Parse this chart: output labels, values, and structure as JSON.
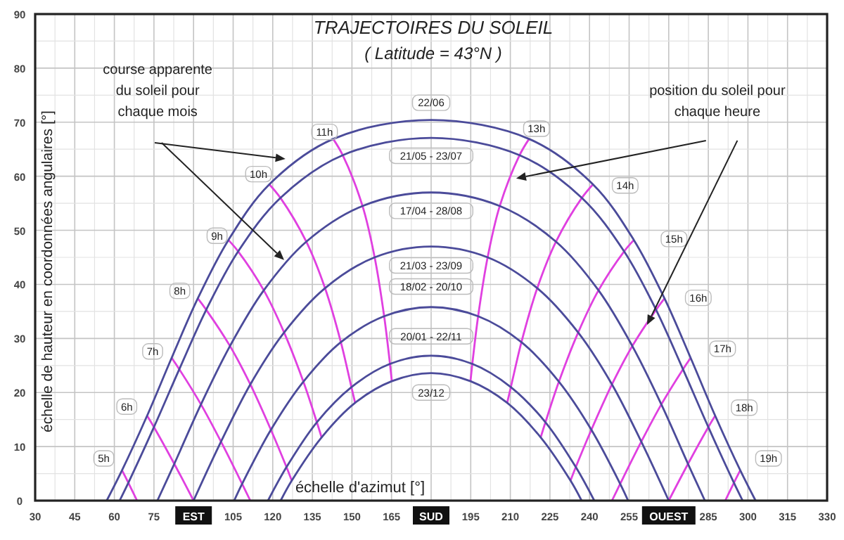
{
  "chart_data": {
    "type": "line",
    "title": "TRAJECTOIRES DU SOLEIL",
    "subtitle": "( Latitude = 43°N )",
    "xlabel": "échelle d'azimut [°]",
    "ylabel": "échelle de hauteur en coordonnées angulaires [°]",
    "xlim": [
      30,
      330
    ],
    "xticks": [
      30,
      45,
      60,
      75,
      {
        "value": 90,
        "label": "EST"
      },
      105,
      120,
      135,
      150,
      165,
      {
        "value": 180,
        "label": "SUD"
      },
      195,
      210,
      225,
      240,
      255,
      {
        "value": 270,
        "label": "OUEST"
      },
      285,
      300,
      315,
      330
    ],
    "ylim": [
      0,
      90
    ],
    "yticks": [
      0,
      10,
      20,
      30,
      40,
      50,
      60,
      70,
      80,
      90
    ],
    "grid": true,
    "series": [
      {
        "color": "#e040e0",
        "x": [
          62.9,
          65.3,
          68.6
        ],
        "values": [
          5.6,
          3.3,
          0
        ]
      },
      {
        "color": "#e040e0",
        "x": [
          72.4,
          75.0,
          82.7,
          90
        ],
        "values": [
          15.7,
          13.6,
          6.8,
          0
        ]
      },
      {
        "color": "#e040e0",
        "x": [
          81.7,
          84.6,
          92.8,
          100.4,
          108.4,
          111.5
        ],
        "values": [
          26.4,
          24.3,
          17.8,
          10.9,
          3.1,
          0
        ]
      },
      {
        "color": "#e040e0",
        "x": [
          91.6,
          94.8,
          103.8,
          111.5,
          119.3,
          125.2,
          127.2
        ],
        "values": [
          37.4,
          35.3,
          28.6,
          21.5,
          13.1,
          6.2,
          3.7
        ]
      },
      {
        "color": "#e040e0",
        "x": [
          103.2,
          106.9,
          116.6,
          124.3,
          131.6,
          136.7,
          138.5
        ],
        "values": [
          48.2,
          46.1,
          38.9,
          31.1,
          22.0,
          14.5,
          11.7
        ]
      },
      {
        "color": "#e040e0",
        "x": [
          118.7,
          122.9,
          132.7,
          139.8,
          145.8,
          149.8,
          151.2
        ],
        "values": [
          58.5,
          56.0,
          47.9,
          39.3,
          29.3,
          21.0,
          18.1
        ]
      },
      {
        "color": "#e040e0",
        "x": [
          142.9,
          146.5,
          154.0,
          158.6,
          162.2,
          164.4,
          165.1
        ],
        "values": [
          66.9,
          63.9,
          54.5,
          45.0,
          34.1,
          25.3,
          22.1
        ]
      },
      {
        "color": "#e040e0",
        "x": [
          217.1,
          213.5,
          206.0,
          201.4,
          197.8,
          195.6,
          194.9
        ],
        "values": [
          66.9,
          63.9,
          54.5,
          45.0,
          34.1,
          25.3,
          22.1
        ]
      },
      {
        "color": "#e040e0",
        "x": [
          241.3,
          237.1,
          227.3,
          220.2,
          214.2,
          210.2,
          208.8
        ],
        "values": [
          58.5,
          56.0,
          47.9,
          39.3,
          29.3,
          21.0,
          18.1
        ]
      },
      {
        "color": "#e040e0",
        "x": [
          256.8,
          253.1,
          243.4,
          235.7,
          228.4,
          223.3,
          221.5
        ],
        "values": [
          48.2,
          46.1,
          38.9,
          31.1,
          22.0,
          14.5,
          11.7
        ]
      },
      {
        "color": "#e040e0",
        "x": [
          268.4,
          265.2,
          256.2,
          248.5,
          240.7,
          234.8,
          232.8
        ],
        "values": [
          37.4,
          35.3,
          28.6,
          21.5,
          13.1,
          6.2,
          3.7
        ]
      },
      {
        "color": "#e040e0",
        "x": [
          278.3,
          275.4,
          267.2,
          259.6,
          251.6,
          248.5
        ],
        "values": [
          26.4,
          24.3,
          17.8,
          10.9,
          3.1,
          0
        ]
      },
      {
        "color": "#e040e0",
        "x": [
          287.6,
          285.0,
          277.3,
          270
        ],
        "values": [
          15.7,
          13.6,
          6.8,
          0
        ]
      },
      {
        "color": "#e040e0",
        "x": [
          297.1,
          294.7,
          291.4
        ],
        "values": [
          5.6,
          3.3,
          0
        ]
      },
      {
        "color": "#4b4b9a",
        "x": [
          57.1,
          62.9,
          72.4,
          81.7,
          91.6,
          103.2,
          118.7,
          142.9,
          180,
          217.1,
          241.3,
          256.8,
          268.4,
          278.3,
          287.6,
          297.1,
          302.9
        ],
        "values": [
          0,
          5.6,
          15.7,
          26.4,
          37.4,
          48.2,
          58.5,
          66.9,
          70.4,
          66.9,
          58.5,
          48.2,
          37.4,
          26.4,
          15.7,
          5.6,
          0
        ]
      },
      {
        "color": "#4b4b9a",
        "x": [
          62.0,
          65.3,
          75.0,
          84.6,
          94.8,
          106.9,
          122.9,
          146.5,
          180,
          213.5,
          237.1,
          253.1,
          265.2,
          275.4,
          285.0,
          294.7,
          298.0
        ],
        "values": [
          0,
          3.3,
          13.6,
          24.3,
          35.3,
          46.1,
          56.0,
          63.9,
          67.1,
          63.9,
          56.0,
          46.1,
          35.3,
          24.3,
          13.6,
          3.3,
          0
        ]
      },
      {
        "color": "#4b4b9a",
        "x": [
          76.3,
          82.7,
          92.8,
          103.8,
          116.6,
          132.7,
          154.0,
          180,
          206.0,
          227.3,
          243.4,
          256.2,
          267.2,
          277.3,
          283.7
        ],
        "values": [
          0,
          6.8,
          17.8,
          28.6,
          38.9,
          47.9,
          54.5,
          57.0,
          54.5,
          47.9,
          38.9,
          28.6,
          17.8,
          6.8,
          0
        ]
      },
      {
        "color": "#4b4b9a",
        "x": [
          90,
          100.4,
          111.5,
          124.3,
          139.8,
          158.6,
          180,
          201.4,
          220.2,
          235.7,
          248.5,
          259.6,
          270
        ],
        "values": [
          0,
          10.9,
          21.5,
          31.1,
          39.3,
          45.0,
          47.0,
          45.0,
          39.3,
          31.1,
          21.5,
          10.9,
          0
        ]
      },
      {
        "color": "#4b4b9a",
        "x": [
          105.4,
          108.4,
          119.3,
          131.6,
          145.8,
          162.2,
          180,
          197.8,
          214.2,
          228.4,
          240.7,
          251.6,
          254.6
        ],
        "values": [
          0,
          3.1,
          13.1,
          22.0,
          29.3,
          34.1,
          35.8,
          34.1,
          29.3,
          22.0,
          13.1,
          3.1,
          0
        ]
      },
      {
        "color": "#4b4b9a",
        "x": [
          118.2,
          125.2,
          136.7,
          149.8,
          164.4,
          180,
          195.6,
          210.2,
          223.3,
          234.8,
          241.8
        ],
        "values": [
          0,
          6.2,
          14.5,
          21.0,
          25.3,
          26.8,
          25.3,
          21.0,
          14.5,
          6.2,
          0
        ]
      },
      {
        "color": "#4b4b9a",
        "x": [
          123.0,
          127.2,
          138.5,
          151.2,
          165.1,
          180,
          194.9,
          208.8,
          221.5,
          232.8,
          237.0
        ],
        "values": [
          0,
          3.7,
          11.7,
          18.1,
          22.1,
          23.6,
          22.1,
          18.1,
          11.7,
          3.7,
          0
        ]
      }
    ],
    "annotations": [
      "5h",
      "6h",
      "7h",
      "8h",
      "9h",
      "10h",
      "11h",
      "13h",
      "14h",
      "15h",
      "16h",
      "17h",
      "18h",
      "19h",
      "22/06",
      "21/05 - 23/07",
      "17/04 - 28/08",
      "21/03 - 23/09",
      "18/02 - 20/10",
      "20/01 - 22/11",
      "23/12",
      "course apparente\ndu soleil pour\nchaque mois",
      "position du soleil pour\nchaque heure"
    ]
  }
}
